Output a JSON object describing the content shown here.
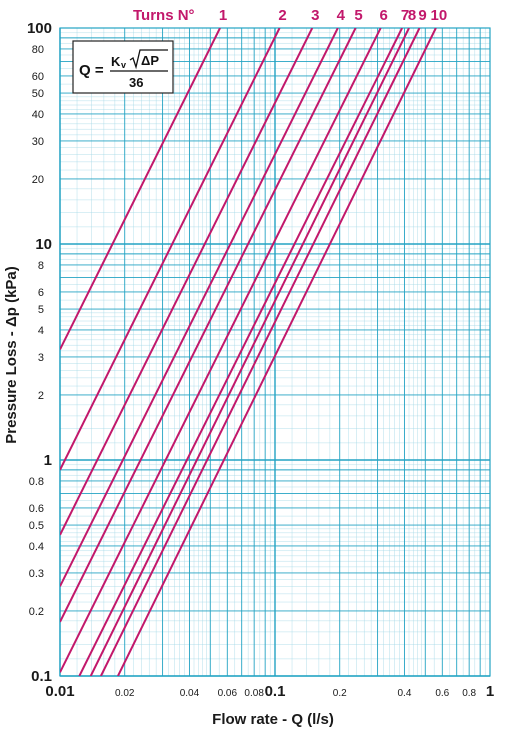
{
  "chart_data": {
    "type": "line",
    "x_scale": "log",
    "y_scale": "log",
    "xlim": [
      0.01,
      1
    ],
    "ylim": [
      0.1,
      100
    ],
    "xlabel": "Flow rate - Q (l/s)",
    "ylabel": "Pressure Loss  - Δp (kPa)",
    "x_major_ticks": [
      {
        "v": 0.01,
        "label": "0.01"
      },
      {
        "v": 0.1,
        "label": "0.1"
      },
      {
        "v": 1,
        "label": "1"
      }
    ],
    "x_minor_ticks": [
      {
        "v": 0.02,
        "label": "0.02"
      },
      {
        "v": 0.04,
        "label": "0.04"
      },
      {
        "v": 0.06,
        "label": "0.06"
      },
      {
        "v": 0.08,
        "label": "0.08"
      },
      {
        "v": 0.2,
        "label": "0.2"
      },
      {
        "v": 0.4,
        "label": "0.4"
      },
      {
        "v": 0.6,
        "label": "0.6"
      },
      {
        "v": 0.8,
        "label": "0.8"
      }
    ],
    "y_major_ticks": [
      {
        "v": 0.1,
        "label": "0.1"
      },
      {
        "v": 1,
        "label": "1"
      },
      {
        "v": 10,
        "label": "10"
      },
      {
        "v": 100,
        "label": "100"
      }
    ],
    "y_minor_ticks": [
      {
        "v": 0.2,
        "label": "0.2"
      },
      {
        "v": 0.3,
        "label": "0.3"
      },
      {
        "v": 0.4,
        "label": "0.4"
      },
      {
        "v": 0.5,
        "label": "0.5"
      },
      {
        "v": 0.6,
        "label": "0.6"
      },
      {
        "v": 0.8,
        "label": "0.8"
      },
      {
        "v": 2,
        "label": "2"
      },
      {
        "v": 3,
        "label": "3"
      },
      {
        "v": 4,
        "label": "4"
      },
      {
        "v": 5,
        "label": "5"
      },
      {
        "v": 6,
        "label": "6"
      },
      {
        "v": 8,
        "label": "8"
      },
      {
        "v": 20,
        "label": "20"
      },
      {
        "v": 30,
        "label": "30"
      },
      {
        "v": 40,
        "label": "40"
      },
      {
        "v": 50,
        "label": "50"
      },
      {
        "v": 60,
        "label": "60"
      },
      {
        "v": 80,
        "label": "80"
      }
    ],
    "series_header": "Turns N°",
    "series": [
      {
        "name": "1",
        "points": [
          [
            0.01,
            3.25
          ],
          [
            0.0555,
            100
          ]
        ]
      },
      {
        "name": "2",
        "points": [
          [
            0.01,
            0.9
          ],
          [
            0.105,
            100
          ]
        ]
      },
      {
        "name": "3",
        "points": [
          [
            0.01,
            0.45
          ],
          [
            0.149,
            100
          ]
        ]
      },
      {
        "name": "4",
        "points": [
          [
            0.01,
            0.26
          ],
          [
            0.196,
            100
          ]
        ]
      },
      {
        "name": "5",
        "points": [
          [
            0.01,
            0.178
          ],
          [
            0.237,
            100
          ]
        ]
      },
      {
        "name": "6",
        "points": [
          [
            0.01,
            0.104
          ],
          [
            0.31,
            100
          ]
        ]
      },
      {
        "name": "7",
        "points": [
          [
            0.0123,
            0.1
          ],
          [
            0.39,
            100
          ]
        ]
      },
      {
        "name": "8",
        "points": [
          [
            0.0139,
            0.1
          ],
          [
            0.42,
            100
          ]
        ]
      },
      {
        "name": "9",
        "points": [
          [
            0.0155,
            0.1
          ],
          [
            0.47,
            100
          ]
        ]
      },
      {
        "name": "10",
        "points": [
          [
            0.0186,
            0.1
          ],
          [
            0.56,
            100
          ]
        ]
      }
    ],
    "grid": true,
    "legend": "top"
  },
  "formula": {
    "lhs": "Q =",
    "numerator_k": "K",
    "numerator_sub": "v",
    "numerator_root": "ΔP",
    "denominator": "36"
  },
  "colors": {
    "curve": "#c2186b",
    "grid_major": "#23a3c3",
    "grid_minor": "#9fd7e6",
    "text": "#1a1a1a"
  }
}
